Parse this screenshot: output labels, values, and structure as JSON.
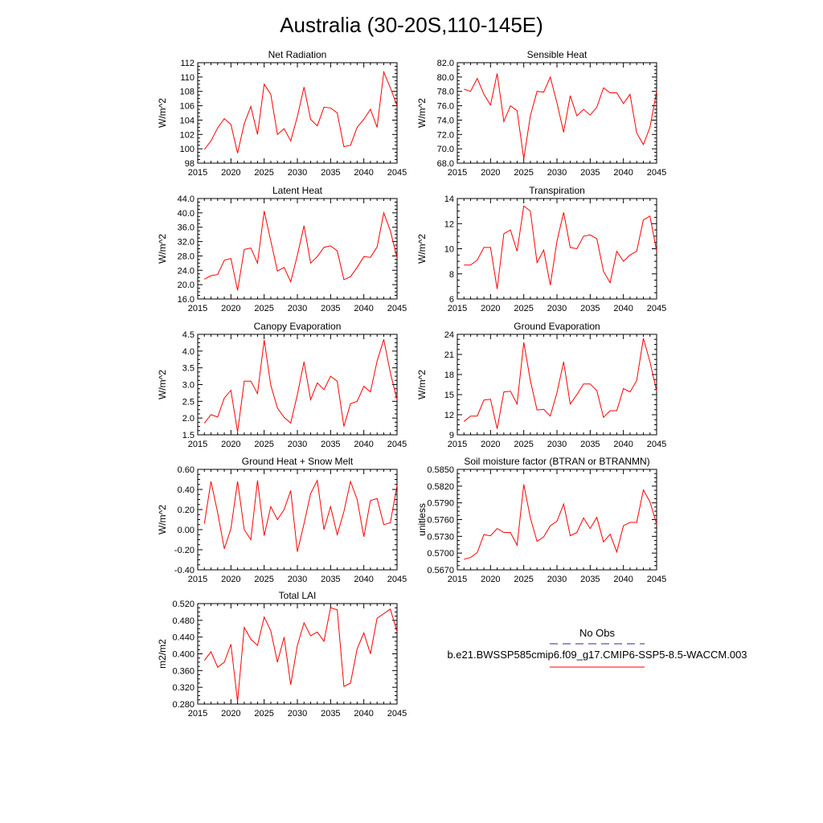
{
  "title": "Australia (30-20S,110-145E)",
  "x_ticks": [
    2015,
    2020,
    2025,
    2030,
    2035,
    2040,
    2045
  ],
  "legend": {
    "obs_label": "No Obs",
    "obs_color": "#2a2a8c",
    "model_label": "b.e21.BWSSP585cmip6.f09_g17.CMIP6-SSP5-8.5-WACCM.003",
    "model_color": "#ff0000"
  },
  "chart_data": [
    {
      "type": "line",
      "title": "Net Radiation",
      "ylabel": "W/m^2",
      "xlim": [
        2015,
        2045
      ],
      "ylim": [
        98,
        112
      ],
      "yticks": [
        "98",
        "100",
        "102",
        "104",
        "106",
        "108",
        "110",
        "112"
      ],
      "x": [
        2016,
        2017,
        2018,
        2019,
        2020,
        2021,
        2022,
        2023,
        2024,
        2025,
        2026,
        2027,
        2028,
        2029,
        2030,
        2031,
        2032,
        2033,
        2034,
        2035,
        2036,
        2037,
        2038,
        2039,
        2040,
        2041,
        2042,
        2043,
        2044,
        2045
      ],
      "series": [
        {
          "values": [
            99.9,
            101.1,
            102.9,
            104.2,
            103.4,
            99.4,
            103.5,
            105.9,
            102.0,
            109.0,
            107.6,
            102.0,
            102.8,
            101.1,
            104.5,
            108.6,
            104.1,
            103.2,
            105.8,
            105.7,
            105.0,
            100.3,
            100.5,
            103.0,
            104.1,
            105.5,
            103.0,
            110.7,
            108.5,
            106.0
          ]
        }
      ]
    },
    {
      "type": "line",
      "title": "Sensible Heat",
      "ylabel": "W/m^2",
      "xlim": [
        2015,
        2045
      ],
      "ylim": [
        68,
        82
      ],
      "yticks": [
        "68.0",
        "70.0",
        "72.0",
        "74.0",
        "76.0",
        "78.0",
        "80.0",
        "82.0"
      ],
      "x": [
        2016,
        2017,
        2018,
        2019,
        2020,
        2021,
        2022,
        2023,
        2024,
        2025,
        2026,
        2027,
        2028,
        2029,
        2030,
        2031,
        2032,
        2033,
        2034,
        2035,
        2036,
        2037,
        2038,
        2039,
        2040,
        2041,
        2042,
        2043,
        2044,
        2045
      ],
      "series": [
        {
          "values": [
            78.3,
            78.0,
            79.8,
            77.6,
            76.1,
            80.5,
            73.8,
            76.0,
            75.3,
            68.6,
            74.6,
            78.0,
            77.9,
            80.0,
            76.4,
            72.3,
            77.4,
            74.6,
            75.5,
            74.7,
            75.8,
            78.5,
            77.8,
            77.8,
            76.3,
            77.6,
            72.2,
            70.6,
            73.0,
            78.0
          ]
        }
      ]
    },
    {
      "type": "line",
      "title": "Latent Heat",
      "ylabel": "W/m^2",
      "xlim": [
        2015,
        2045
      ],
      "ylim": [
        16,
        44
      ],
      "yticks": [
        "16.0",
        "20.0",
        "24.0",
        "28.0",
        "32.0",
        "36.0",
        "40.0",
        "44.0"
      ],
      "x": [
        2016,
        2017,
        2018,
        2019,
        2020,
        2021,
        2022,
        2023,
        2024,
        2025,
        2026,
        2027,
        2028,
        2029,
        2030,
        2031,
        2032,
        2033,
        2034,
        2035,
        2036,
        2037,
        2038,
        2039,
        2040,
        2041,
        2042,
        2043,
        2044,
        2045
      ],
      "series": [
        {
          "values": [
            21.5,
            22.5,
            22.8,
            26.8,
            27.3,
            18.4,
            29.8,
            30.2,
            26.0,
            40.5,
            32.2,
            23.8,
            24.8,
            20.8,
            28.2,
            36.4,
            26.0,
            27.8,
            30.4,
            30.8,
            29.4,
            21.4,
            22.2,
            24.8,
            27.8,
            27.6,
            30.5,
            40.0,
            35.0,
            27.5
          ]
        }
      ]
    },
    {
      "type": "line",
      "title": "Transpiration",
      "ylabel": "W/m^2",
      "xlim": [
        2015,
        2045
      ],
      "ylim": [
        6,
        14
      ],
      "yticks": [
        "6",
        "8",
        "10",
        "12",
        "14"
      ],
      "x": [
        2016,
        2017,
        2018,
        2019,
        2020,
        2021,
        2022,
        2023,
        2024,
        2025,
        2026,
        2027,
        2028,
        2029,
        2030,
        2031,
        2032,
        2033,
        2034,
        2035,
        2036,
        2037,
        2038,
        2039,
        2040,
        2041,
        2042,
        2043,
        2044,
        2045
      ],
      "series": [
        {
          "values": [
            8.7,
            8.7,
            9.1,
            10.1,
            10.1,
            6.8,
            11.2,
            11.5,
            9.8,
            13.4,
            13.0,
            8.9,
            9.9,
            7.1,
            10.6,
            12.9,
            10.1,
            10.0,
            11.0,
            11.1,
            10.8,
            8.2,
            7.3,
            9.8,
            9.0,
            9.5,
            9.8,
            12.3,
            12.6,
            9.8
          ]
        }
      ]
    },
    {
      "type": "line",
      "title": "Canopy Evaporation",
      "ylabel": "W/m^2",
      "xlim": [
        2015,
        2045
      ],
      "ylim": [
        1.5,
        4.5
      ],
      "yticks": [
        "1.5",
        "2.0",
        "2.5",
        "3.0",
        "3.5",
        "4.0",
        "4.5"
      ],
      "x": [
        2016,
        2017,
        2018,
        2019,
        2020,
        2021,
        2022,
        2023,
        2024,
        2025,
        2026,
        2027,
        2028,
        2029,
        2030,
        2031,
        2032,
        2033,
        2034,
        2035,
        2036,
        2037,
        2038,
        2039,
        2040,
        2041,
        2042,
        2043,
        2044,
        2045
      ],
      "series": [
        {
          "values": [
            1.85,
            2.1,
            2.03,
            2.6,
            2.83,
            1.58,
            3.1,
            3.1,
            2.73,
            4.33,
            2.98,
            2.3,
            2.02,
            1.85,
            2.7,
            3.68,
            2.55,
            3.05,
            2.85,
            3.25,
            3.1,
            1.75,
            2.43,
            2.5,
            2.95,
            2.78,
            3.7,
            4.35,
            3.35,
            2.55
          ]
        }
      ]
    },
    {
      "type": "line",
      "title": "Ground Evaporation",
      "ylabel": "W/m^2",
      "xlim": [
        2015,
        2045
      ],
      "ylim": [
        9,
        24
      ],
      "yticks": [
        "9",
        "12",
        "15",
        "18",
        "21",
        "24"
      ],
      "x": [
        2016,
        2017,
        2018,
        2019,
        2020,
        2021,
        2022,
        2023,
        2024,
        2025,
        2026,
        2027,
        2028,
        2029,
        2030,
        2031,
        2032,
        2033,
        2034,
        2035,
        2036,
        2037,
        2038,
        2039,
        2040,
        2041,
        2042,
        2043,
        2044,
        2045
      ],
      "series": [
        {
          "values": [
            11.0,
            11.8,
            11.8,
            14.2,
            14.3,
            9.9,
            15.4,
            15.5,
            13.6,
            22.8,
            17.1,
            12.7,
            12.8,
            11.8,
            15.3,
            19.9,
            13.6,
            15.0,
            16.6,
            16.6,
            15.6,
            11.6,
            12.6,
            12.6,
            15.9,
            15.4,
            17.1,
            23.4,
            19.9,
            15.5
          ]
        }
      ]
    },
    {
      "type": "line",
      "title": "Ground Heat + Snow Melt",
      "ylabel": "W/m^2",
      "xlim": [
        2015,
        2045
      ],
      "ylim": [
        -0.4,
        0.6
      ],
      "yticks": [
        "-0.40",
        "-0.20",
        "0.00",
        "0.20",
        "0.40",
        "0.60"
      ],
      "x": [
        2016,
        2017,
        2018,
        2019,
        2020,
        2021,
        2022,
        2023,
        2024,
        2025,
        2026,
        2027,
        2028,
        2029,
        2030,
        2031,
        2032,
        2033,
        2034,
        2035,
        2036,
        2037,
        2038,
        2039,
        2040,
        2041,
        2042,
        2043,
        2044,
        2045
      ],
      "series": [
        {
          "values": [
            0.06,
            0.48,
            0.17,
            -0.19,
            0.01,
            0.48,
            0.0,
            -0.1,
            0.49,
            -0.06,
            0.23,
            0.1,
            0.2,
            0.39,
            -0.22,
            0.06,
            0.36,
            0.49,
            0.0,
            0.23,
            -0.05,
            0.18,
            0.48,
            0.3,
            -0.07,
            0.29,
            0.31,
            0.05,
            0.07,
            0.44
          ]
        }
      ]
    },
    {
      "type": "line",
      "title": "Soil moisture factor (BTRAN or BTRANMN)",
      "ylabel": "unitless",
      "xlim": [
        2015,
        2045
      ],
      "ylim": [
        0.567,
        0.585
      ],
      "yticks": [
        "0.5670",
        "0.5700",
        "0.5730",
        "0.5760",
        "0.5790",
        "0.5820",
        "0.5850"
      ],
      "x": [
        2016,
        2017,
        2018,
        2019,
        2020,
        2021,
        2022,
        2023,
        2024,
        2025,
        2026,
        2027,
        2028,
        2029,
        2030,
        2031,
        2032,
        2033,
        2034,
        2035,
        2036,
        2037,
        2038,
        2039,
        2040,
        2041,
        2042,
        2043,
        2044,
        2045
      ],
      "series": [
        {
          "values": [
            0.5689,
            0.5692,
            0.5701,
            0.5733,
            0.5731,
            0.5744,
            0.5737,
            0.5737,
            0.5714,
            0.5823,
            0.5763,
            0.5721,
            0.5729,
            0.5749,
            0.5757,
            0.5788,
            0.5731,
            0.5737,
            0.5763,
            0.5744,
            0.5764,
            0.572,
            0.5734,
            0.5702,
            0.5749,
            0.5755,
            0.5755,
            0.5813,
            0.5792,
            0.5752
          ]
        }
      ]
    },
    {
      "type": "line",
      "title": "Total LAI",
      "ylabel": "m2/m2",
      "xlim": [
        2015,
        2045
      ],
      "ylim": [
        0.28,
        0.52
      ],
      "yticks": [
        "0.280",
        "0.320",
        "0.360",
        "0.400",
        "0.440",
        "0.480",
        "0.520"
      ],
      "x": [
        2016,
        2017,
        2018,
        2019,
        2020,
        2021,
        2022,
        2023,
        2024,
        2025,
        2026,
        2027,
        2028,
        2029,
        2030,
        2031,
        2032,
        2033,
        2034,
        2035,
        2036,
        2037,
        2038,
        2039,
        2040,
        2041,
        2042,
        2043,
        2044,
        2045
      ],
      "series": [
        {
          "values": [
            0.384,
            0.405,
            0.368,
            0.38,
            0.423,
            0.286,
            0.463,
            0.435,
            0.42,
            0.488,
            0.455,
            0.38,
            0.44,
            0.326,
            0.42,
            0.474,
            0.443,
            0.452,
            0.43,
            0.51,
            0.505,
            0.322,
            0.33,
            0.412,
            0.45,
            0.4,
            0.485,
            0.496,
            0.507,
            0.453
          ]
        }
      ]
    }
  ]
}
